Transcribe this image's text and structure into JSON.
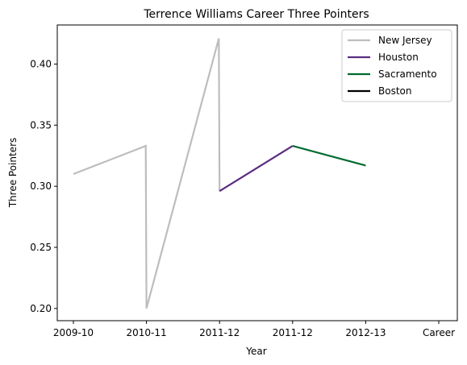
{
  "chart_data": {
    "type": "line",
    "title": "Terrence Williams Career Three Pointers",
    "xlabel": "Year",
    "ylabel": "Three Pointers",
    "categories": [
      "2009-10",
      "2010-11",
      "2011-12",
      "2011-12",
      "2012-13",
      "Career"
    ],
    "ylim": [
      0.19,
      0.432
    ],
    "yticks": [
      0.2,
      0.25,
      0.3,
      0.35,
      0.4
    ],
    "ytick_labels": [
      "0.20",
      "0.25",
      "0.30",
      "0.35",
      "0.40"
    ],
    "grid": false,
    "legend_position": "top-right",
    "series": [
      {
        "name": "New Jersey",
        "color": "#bdbdbd",
        "points": [
          {
            "x": 0,
            "y": 0.31
          },
          {
            "x": 0.99,
            "y": 0.333
          },
          {
            "x": 1.0,
            "y": 0.2
          },
          {
            "x": 1.99,
            "y": 0.421
          },
          {
            "x": 2.0,
            "y": 0.296
          }
        ]
      },
      {
        "name": "Houston",
        "color": "#5a2d81",
        "points": [
          {
            "x": 2.0,
            "y": 0.296
          },
          {
            "x": 3.0,
            "y": 0.333
          }
        ]
      },
      {
        "name": "Sacramento",
        "color": "#006b2e",
        "points": [
          {
            "x": 3.0,
            "y": 0.333
          },
          {
            "x": 4.0,
            "y": 0.317
          }
        ]
      },
      {
        "name": "Boston",
        "color": "#000000",
        "points": []
      }
    ]
  }
}
